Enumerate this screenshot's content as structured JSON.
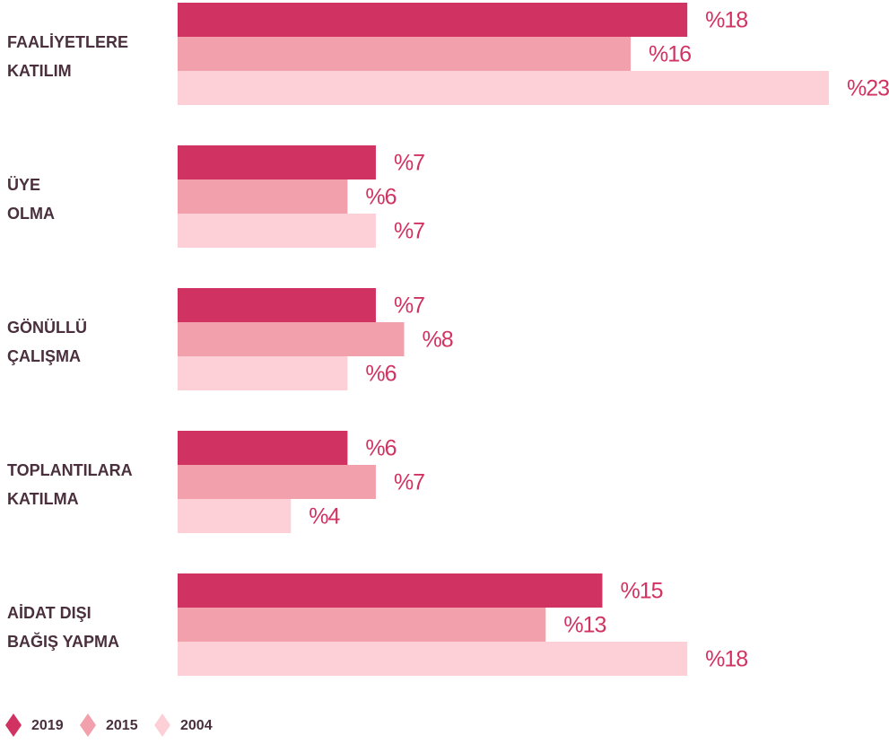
{
  "chart_data": {
    "type": "bar",
    "orientation": "horizontal",
    "categories": [
      [
        "FAALİYETLERE",
        "KATILIM"
      ],
      [
        "ÜYE",
        "OLMA"
      ],
      [
        "GÖNÜLLÜ",
        "ÇALIŞMA"
      ],
      [
        "TOPLANTILARA",
        "KATILMA"
      ],
      [
        "AİDAT DIŞI",
        "BAĞIŞ YAPMA"
      ]
    ],
    "series": [
      {
        "name": "2019",
        "color": "#d03361",
        "values": [
          18,
          7,
          7,
          6,
          15
        ],
        "value_labels": [
          "%18",
          "%7",
          "%7",
          "%6",
          "%15"
        ]
      },
      {
        "name": "2015",
        "color": "#f2a0ac",
        "values": [
          16,
          6,
          8,
          7,
          13
        ],
        "value_labels": [
          "%16",
          "%6",
          "%8",
          "%7",
          "%13"
        ]
      },
      {
        "name": "2004",
        "color": "#fdd0d8",
        "values": [
          23,
          7,
          6,
          4,
          18
        ],
        "value_labels": [
          "%23",
          "%7",
          "%6",
          "%4",
          "%18"
        ]
      }
    ],
    "label_color": "#d03361",
    "legend": "bottom-left"
  }
}
